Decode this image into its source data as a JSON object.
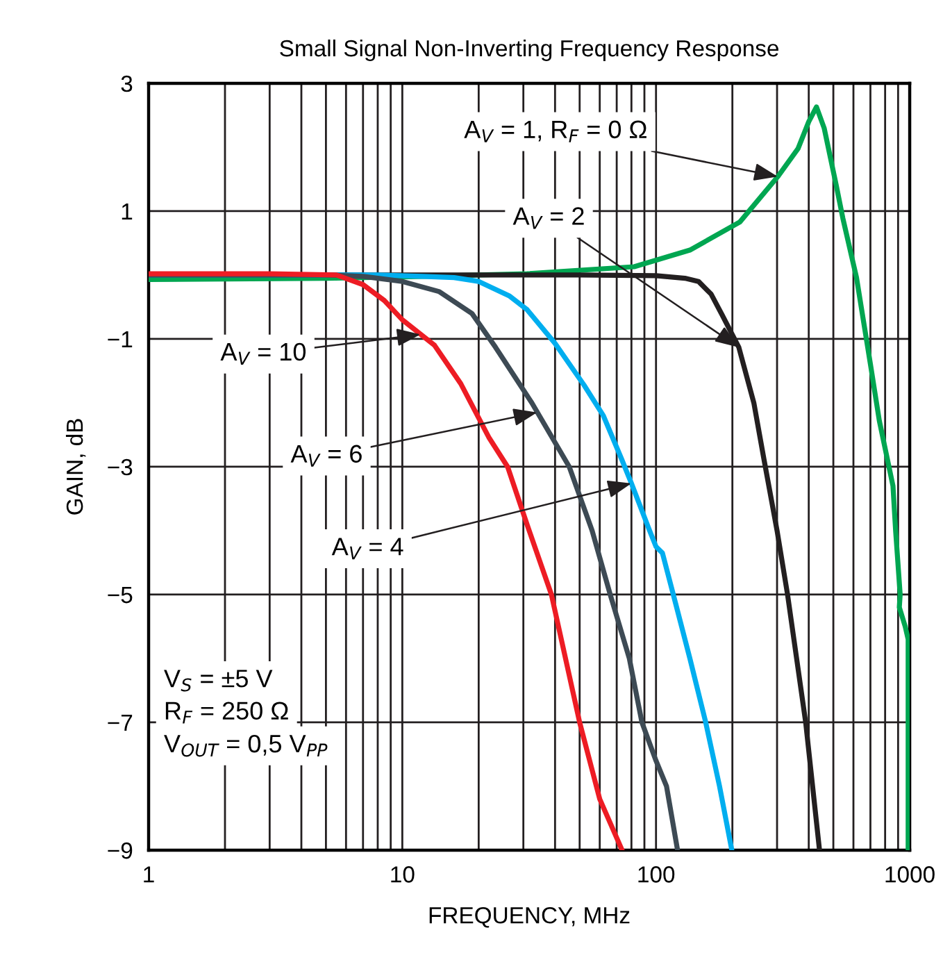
{
  "chart_data": {
    "type": "line",
    "title": "Small Signal Non-Inverting Frequency Response",
    "xlabel": "FREQUENCY, MHz",
    "ylabel": "GAIN, dB",
    "log": "x",
    "xlim": [
      1,
      1000
    ],
    "xticks": [
      1,
      10,
      100,
      1000
    ],
    "ylim": [
      -9,
      3
    ],
    "yticks": [
      3,
      1,
      {
        "value": -1,
        "label": "−1"
      },
      {
        "value": -3,
        "label": "−3"
      },
      {
        "value": -5,
        "label": "−5"
      },
      {
        "value": -7,
        "label": "−7"
      },
      {
        "value": -9,
        "label": "−9"
      }
    ],
    "grid": true,
    "marker": "none",
    "line_style": "solid",
    "series": [
      {
        "color": "#00a651",
        "x": [
          1,
          5,
          10,
          31,
          82,
          136,
          214,
          302,
          363,
          400,
          429,
          460,
          513,
          545,
          617,
          701,
          759,
          859,
          880,
          917,
          910,
          960,
          986,
          986
        ],
        "values": [
          -0.07,
          -0.05,
          -0.03,
          0.02,
          0.13,
          0.39,
          0.83,
          1.54,
          1.98,
          2.4,
          2.63,
          2.3,
          1.41,
          0.89,
          -0.04,
          -1.41,
          -2.28,
          -3.3,
          -4.0,
          -5.0,
          -5.2,
          -5.5,
          -5.7,
          -9
        ]
      },
      {
        "color": "#231f20",
        "x": [
          1,
          50,
          100,
          130,
          147,
          165,
          182,
          212,
          243,
          266,
          300,
          330,
          389,
          441
        ],
        "values": [
          0,
          0,
          -0.01,
          -0.05,
          -0.1,
          -0.3,
          -0.62,
          -1.13,
          -2.0,
          -2.87,
          -4.0,
          -5.0,
          -7.0,
          -9
        ]
      },
      {
        "color": "#00aeef",
        "x": [
          1,
          8,
          12,
          16,
          20,
          26.5,
          31,
          40,
          52,
          62,
          73,
          80,
          93.5,
          100,
          106,
          117,
          136,
          157,
          178,
          199
        ],
        "values": [
          0,
          0,
          -0.02,
          -0.04,
          -0.1,
          -0.33,
          -0.54,
          -1.07,
          -1.72,
          -2.2,
          -2.87,
          -3.26,
          -3.96,
          -4.25,
          -4.35,
          -5.0,
          -6.0,
          -7.0,
          -8.0,
          -9
        ]
      },
      {
        "color": "#3d4a54",
        "x": [
          1,
          5,
          7,
          10,
          14,
          18.8,
          23.3,
          32.4,
          45.5,
          56,
          66,
          78.5,
          88,
          100,
          110,
          121.6
        ],
        "values": [
          0,
          0,
          -0.02,
          -0.1,
          -0.26,
          -0.6,
          -1.13,
          -2.0,
          -3.0,
          -4.0,
          -5.0,
          -6.0,
          -7.0,
          -7.6,
          -8.0,
          -9
        ]
      },
      {
        "color": "#ed1c24",
        "x": [
          1,
          3,
          5.5,
          7,
          8.5,
          10,
          13.4,
          17,
          22,
          26,
          31,
          38.7,
          50,
          60,
          73.5
        ],
        "values": [
          0.02,
          0.02,
          0,
          -0.15,
          -0.4,
          -0.7,
          -1.1,
          -1.7,
          -2.55,
          -3.0,
          -3.9,
          -5.0,
          -7.0,
          -8.2,
          -9
        ]
      }
    ],
    "annotations": [
      {
        "text": "A$_{V}$ = 1, R$_{F}$ = 0 Ω",
        "x": 302,
        "y": 1.54
      },
      {
        "text": "A$_{V}$ = 2",
        "x": 212,
        "y": -1.13
      },
      {
        "text": "A$_{V}$ = 10",
        "x": 11.8,
        "y": -0.93
      },
      {
        "text": "A$_{V}$ = 6",
        "x": 34,
        "y": -2.15
      },
      {
        "text": "A$_{V}$ = 4",
        "x": 80,
        "y": -3.26
      },
      "V$_{S}$ = ±5 V",
      "R$_{F}$ = 250 Ω",
      "V$_{OUT}$ = 0,5 V$_{PP}$"
    ]
  }
}
